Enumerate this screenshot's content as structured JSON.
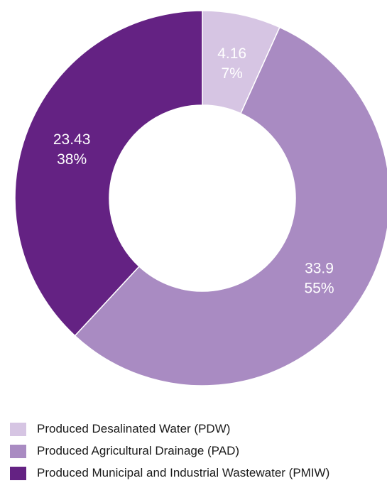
{
  "chart_data": {
    "type": "pie",
    "donut": true,
    "title": "",
    "categories": [
      "Produced Desalinated Water (PDW)",
      "Produced Agricultural Drainage (PAD)",
      "Produced Municipal and Industrial Wastewater (PMIW)"
    ],
    "values": [
      4.16,
      33.9,
      23.43
    ],
    "percent_labels": [
      "7%",
      "55%",
      "38%"
    ],
    "value_labels": [
      "4.16",
      "33.9",
      "23.43"
    ],
    "colors": [
      "#d6c5e3",
      "#a98bc2",
      "#642283"
    ],
    "legend_position": "bottom-left"
  }
}
